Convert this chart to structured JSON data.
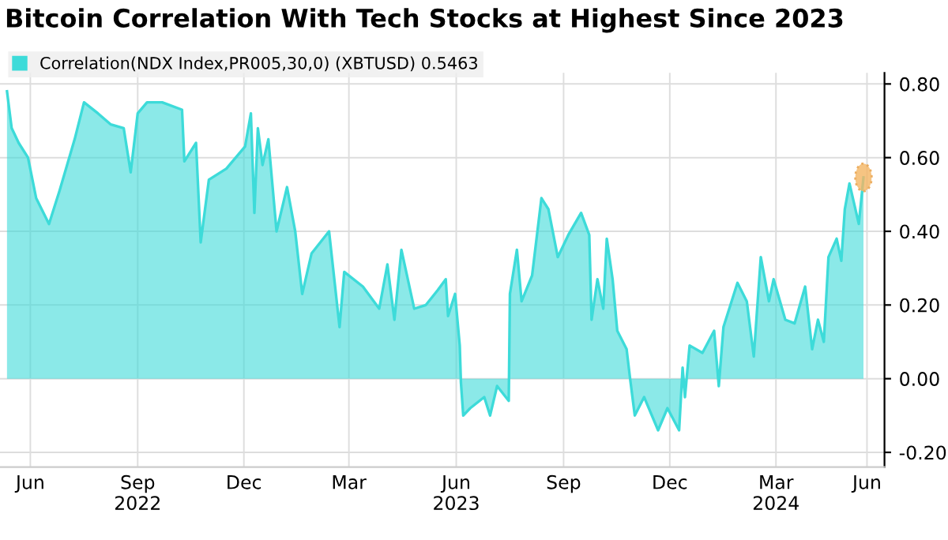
{
  "chart_data": {
    "type": "area",
    "title": "Bitcoin Correlation With Tech Stocks at Highest Since 2023",
    "x": [
      "2022-05-26",
      "2022-05-30",
      "2022-06-05",
      "2022-06-13",
      "2022-06-20",
      "2022-07-01",
      "2022-07-10",
      "2022-07-23",
      "2022-07-31",
      "2022-08-12",
      "2022-08-23",
      "2022-09-03",
      "2022-09-09",
      "2022-09-15",
      "2022-09-23",
      "2022-10-06",
      "2022-10-23",
      "2022-10-25",
      "2022-11-04",
      "2022-11-08",
      "2022-11-15",
      "2022-11-30",
      "2022-12-16",
      "2022-12-21",
      "2022-12-24",
      "2022-12-27",
      "2022-12-31",
      "2023-01-05",
      "2023-01-12",
      "2023-01-21",
      "2023-01-28",
      "2023-02-03",
      "2023-02-11",
      "2023-02-26",
      "2023-03-07",
      "2023-03-11",
      "2023-03-27",
      "2023-04-10",
      "2023-04-17",
      "2023-04-23",
      "2023-04-29",
      "2023-05-10",
      "2023-05-20",
      "2023-05-30",
      "2023-06-06",
      "2023-06-08",
      "2023-06-14",
      "2023-06-18",
      "2023-06-19",
      "2023-06-21",
      "2023-06-27",
      "2023-07-09",
      "2023-07-14",
      "2023-07-20",
      "2023-07-30",
      "2023-07-31",
      "2023-08-06",
      "2023-08-10",
      "2023-08-19",
      "2023-08-27",
      "2023-09-02",
      "2023-09-10",
      "2023-09-19",
      "2023-09-30",
      "2023-10-07",
      "2023-10-09",
      "2023-10-14",
      "2023-10-19",
      "2023-10-22",
      "2023-10-27",
      "2023-10-31",
      "2023-11-08",
      "2023-11-11",
      "2023-11-15",
      "2023-11-23",
      "2023-12-05",
      "2023-12-13",
      "2023-12-23",
      "2023-12-26",
      "2023-12-28",
      "2024-01-01",
      "2024-01-12",
      "2024-01-22",
      "2024-01-26",
      "2024-01-30",
      "2024-02-11",
      "2024-02-19",
      "2024-02-25",
      "2024-03-02",
      "2024-03-09",
      "2024-03-13",
      "2024-03-23",
      "2024-03-31",
      "2024-04-09",
      "2024-04-15",
      "2024-04-20",
      "2024-04-25",
      "2024-04-29",
      "2024-05-06",
      "2024-05-10",
      "2024-05-13",
      "2024-05-17",
      "2024-05-25",
      "2024-05-29"
    ],
    "series": [
      {
        "name": "Correlation(NDX Index,PR005,30,0) (XBTUSD) 0.5463",
        "color": "#3ddbd9",
        "values": [
          0.78,
          0.68,
          0.64,
          0.6,
          0.49,
          0.42,
          0.51,
          0.65,
          0.75,
          0.72,
          0.69,
          0.68,
          0.56,
          0.72,
          0.75,
          0.75,
          0.73,
          0.59,
          0.64,
          0.37,
          0.54,
          0.57,
          0.63,
          0.72,
          0.45,
          0.68,
          0.58,
          0.65,
          0.4,
          0.52,
          0.4,
          0.23,
          0.34,
          0.4,
          0.14,
          0.29,
          0.25,
          0.19,
          0.31,
          0.16,
          0.35,
          0.19,
          0.2,
          0.24,
          0.27,
          0.17,
          0.23,
          0.09,
          -0.01,
          -0.1,
          -0.08,
          -0.05,
          -0.1,
          -0.02,
          -0.06,
          0.23,
          0.35,
          0.21,
          0.28,
          0.49,
          0.46,
          0.33,
          0.39,
          0.45,
          0.39,
          0.16,
          0.27,
          0.19,
          0.38,
          0.27,
          0.13,
          0.08,
          0.0,
          -0.1,
          -0.05,
          -0.14,
          -0.08,
          -0.14,
          0.03,
          -0.05,
          0.09,
          0.07,
          0.13,
          -0.02,
          0.14,
          0.26,
          0.21,
          0.06,
          0.33,
          0.21,
          0.27,
          0.16,
          0.15,
          0.25,
          0.08,
          0.16,
          0.1,
          0.33,
          0.38,
          0.32,
          0.46,
          0.53,
          0.42,
          0.5463
        ]
      }
    ],
    "xlim": [
      "2022-05-20",
      "2024-06-16"
    ],
    "xticks": [
      {
        "value": "2022-06-15",
        "label": "Jun"
      },
      {
        "value": "2022-09-15",
        "label": "Sep\n2022"
      },
      {
        "value": "2022-12-15",
        "label": "Dec"
      },
      {
        "value": "2023-03-15",
        "label": "Mar"
      },
      {
        "value": "2023-06-15",
        "label": "Jun\n2023"
      },
      {
        "value": "2023-09-15",
        "label": "Sep"
      },
      {
        "value": "2023-12-15",
        "label": "Dec"
      },
      {
        "value": "2024-03-15",
        "label": "Mar\n2024"
      },
      {
        "value": "2024-06-01",
        "label": "Jun"
      }
    ],
    "ylim": [
      -0.24,
      0.83
    ],
    "yticks": [
      {
        "value": -0.2,
        "label": "-0.20"
      },
      {
        "value": 0.0,
        "label": "0.00"
      },
      {
        "value": 0.2,
        "label": "0.20"
      },
      {
        "value": 0.4,
        "label": "0.40"
      },
      {
        "value": 0.6,
        "label": "0.60"
      },
      {
        "value": 0.8,
        "label": "0.80"
      }
    ],
    "grid": true,
    "legend": "top left"
  }
}
